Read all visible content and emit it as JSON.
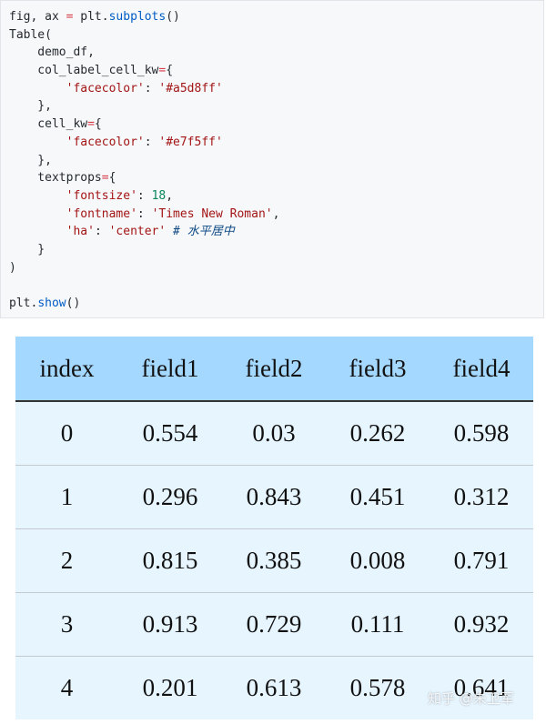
{
  "code": {
    "lines": [
      [
        {
          "t": "fig, ax ",
          "c": "plain"
        },
        {
          "t": "=",
          "c": "op"
        },
        {
          "t": " plt.",
          "c": "plain"
        },
        {
          "t": "subplots",
          "c": "fn"
        },
        {
          "t": "()",
          "c": "plain"
        }
      ],
      [
        {
          "t": "Table(",
          "c": "plain"
        }
      ],
      [
        {
          "t": "    demo_df,",
          "c": "plain"
        }
      ],
      [
        {
          "t": "    col_label_cell_kw",
          "c": "plain"
        },
        {
          "t": "=",
          "c": "op"
        },
        {
          "t": "{",
          "c": "plain"
        }
      ],
      [
        {
          "t": "        ",
          "c": "plain"
        },
        {
          "t": "'facecolor'",
          "c": "str"
        },
        {
          "t": ": ",
          "c": "plain"
        },
        {
          "t": "'#a5d8ff'",
          "c": "str"
        }
      ],
      [
        {
          "t": "    },",
          "c": "plain"
        }
      ],
      [
        {
          "t": "    cell_kw",
          "c": "plain"
        },
        {
          "t": "=",
          "c": "op"
        },
        {
          "t": "{",
          "c": "plain"
        }
      ],
      [
        {
          "t": "        ",
          "c": "plain"
        },
        {
          "t": "'facecolor'",
          "c": "str"
        },
        {
          "t": ": ",
          "c": "plain"
        },
        {
          "t": "'#e7f5ff'",
          "c": "str"
        }
      ],
      [
        {
          "t": "    },",
          "c": "plain"
        }
      ],
      [
        {
          "t": "    textprops",
          "c": "plain"
        },
        {
          "t": "=",
          "c": "op"
        },
        {
          "t": "{",
          "c": "plain"
        }
      ],
      [
        {
          "t": "        ",
          "c": "plain"
        },
        {
          "t": "'fontsize'",
          "c": "str"
        },
        {
          "t": ": ",
          "c": "plain"
        },
        {
          "t": "18",
          "c": "num"
        },
        {
          "t": ",",
          "c": "plain"
        }
      ],
      [
        {
          "t": "        ",
          "c": "plain"
        },
        {
          "t": "'fontname'",
          "c": "str"
        },
        {
          "t": ": ",
          "c": "plain"
        },
        {
          "t": "'Times New Roman'",
          "c": "str"
        },
        {
          "t": ",",
          "c": "plain"
        }
      ],
      [
        {
          "t": "        ",
          "c": "plain"
        },
        {
          "t": "'ha'",
          "c": "str"
        },
        {
          "t": ": ",
          "c": "plain"
        },
        {
          "t": "'center'",
          "c": "str"
        },
        {
          "t": " ",
          "c": "plain"
        },
        {
          "t": "# 水平居中",
          "c": "cmt"
        }
      ],
      [
        {
          "t": "    }",
          "c": "plain"
        }
      ],
      [
        {
          "t": ")",
          "c": "plain"
        }
      ],
      [
        {
          "t": "",
          "c": "plain"
        }
      ],
      [
        {
          "t": "plt.",
          "c": "plain"
        },
        {
          "t": "show",
          "c": "fn"
        },
        {
          "t": "()",
          "c": "plain"
        }
      ]
    ]
  },
  "table": {
    "header_color": "#a5d8ff",
    "cell_color": "#e7f5ff",
    "columns": [
      "index",
      "field1",
      "field2",
      "field3",
      "field4"
    ],
    "rows": [
      [
        "0",
        "0.554",
        "0.03",
        "0.262",
        "0.598"
      ],
      [
        "1",
        "0.296",
        "0.843",
        "0.451",
        "0.312"
      ],
      [
        "2",
        "0.815",
        "0.385",
        "0.008",
        "0.791"
      ],
      [
        "3",
        "0.913",
        "0.729",
        "0.111",
        "0.932"
      ],
      [
        "4",
        "0.201",
        "0.613",
        "0.578",
        "0.641"
      ]
    ]
  },
  "watermark": "知乎 @朱卫军"
}
